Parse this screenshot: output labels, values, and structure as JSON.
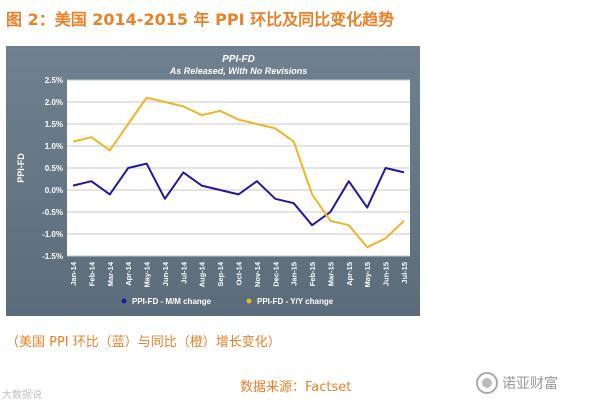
{
  "headline": "图 2：美国 2014-2015 年 PPI 环比及同比变化趋势",
  "caption": "（美国 PPI 环比（蓝）与同比（橙）增长变化）",
  "source": "数据来源：Factset",
  "watermark_left": "大数据说",
  "watermark_right": "诺亚财富",
  "watermark_right_icon": "chat-bubble-icon",
  "chart_data": {
    "type": "line",
    "title": "PPI-FD",
    "subtitle": "As Released, With No Revisions",
    "ylabel": "PPI-FD",
    "xlabel": "",
    "ylim": [
      -1.5,
      2.5
    ],
    "yticks": [
      "2.5%",
      "2.0%",
      "1.5%",
      "1.0%",
      "0.5%",
      "0.0%",
      "-0.5%",
      "-1.0%",
      "-1.5%"
    ],
    "grid": true,
    "legend_placement": "bottom",
    "categories": [
      "Jan-14",
      "Feb-14",
      "Mar-14",
      "Apr-14",
      "May-14",
      "Jun-14",
      "Jul-14",
      "Aug-14",
      "Sep-14",
      "Oct-14",
      "Nov-14",
      "Dec-14",
      "Jan-15",
      "Feb-15",
      "Mar-15",
      "Apr-15",
      "May-15",
      "Jun-15",
      "Jul-15"
    ],
    "series": [
      {
        "name": "PPI-FD - M/M change",
        "color": "#1f1a9a",
        "values": [
          0.1,
          0.2,
          -0.1,
          0.5,
          0.6,
          -0.2,
          0.4,
          0.1,
          0.0,
          -0.1,
          0.2,
          -0.2,
          -0.3,
          -0.8,
          -0.5,
          0.2,
          -0.4,
          0.5,
          0.4
        ]
      },
      {
        "name": "PPI-FD - Y/Y change",
        "color": "#f0b429",
        "values": [
          1.1,
          1.2,
          0.9,
          1.5,
          2.1,
          2.0,
          1.9,
          1.7,
          1.8,
          1.6,
          1.5,
          1.4,
          1.1,
          -0.1,
          -0.7,
          -0.8,
          -1.3,
          -1.1,
          -0.7
        ]
      }
    ]
  }
}
